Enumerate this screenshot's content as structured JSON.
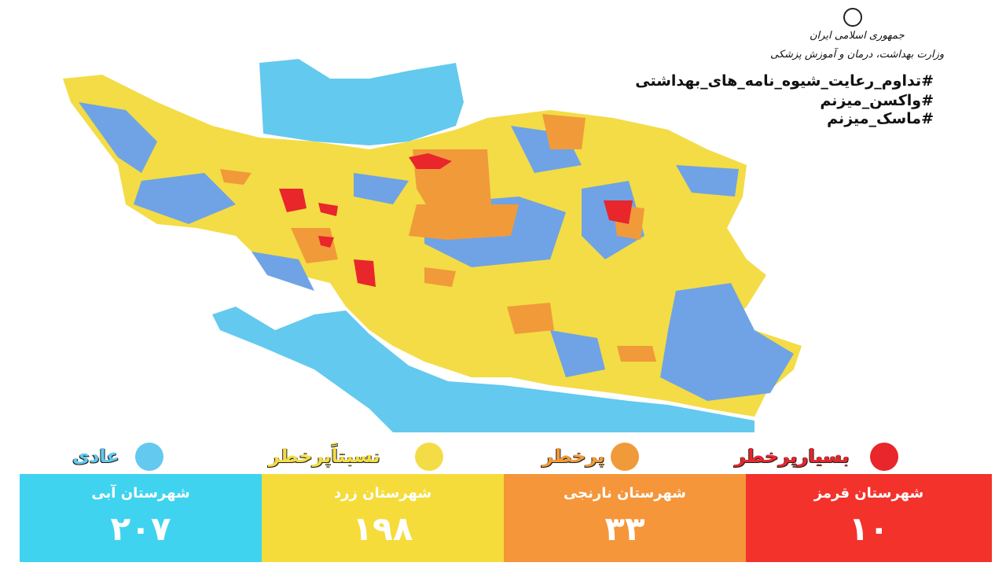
{
  "header": {
    "country": "جمهوری اسلامی ایران",
    "ministry": "وزارت بهداشت، درمان و آموزش پزشکی"
  },
  "hashtags": [
    "#تداوم_رعایت_شیوه_نامه_های_بهداشتی",
    "#واکسن_میزنم",
    "#ماسک_میزنم"
  ],
  "legend": [
    "عادی",
    "نسبتاًپرخطر",
    "پرخطر",
    "بسیارپرخطر"
  ],
  "stats": [
    {
      "title": "شهرستان آبی",
      "count": "۲۰۷"
    },
    {
      "title": "شهرستان زرد",
      "count": "۱۹۸"
    },
    {
      "title": "شهرستان نارنجی",
      "count": "۳۳"
    },
    {
      "title": "شهرستان قرمز",
      "count": "۱۰"
    }
  ]
}
